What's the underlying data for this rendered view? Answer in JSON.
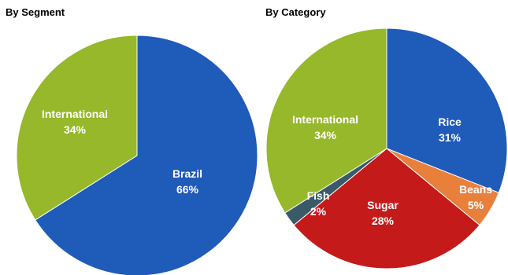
{
  "chart_data": [
    {
      "type": "pie",
      "title": "By Segment",
      "slices": [
        {
          "label": "Brazil",
          "value": 66,
          "value_label": "66%",
          "color": "#1F5BB8"
        },
        {
          "label": "International",
          "value": 34,
          "value_label": "34%",
          "color": "#96B82A"
        }
      ]
    },
    {
      "type": "pie",
      "title": "By Category",
      "slices": [
        {
          "label": "Rice",
          "value": 31,
          "value_label": "31%",
          "color": "#1F5BB8"
        },
        {
          "label": "Beans",
          "value": 5,
          "value_label": "5%",
          "color": "#E8803C"
        },
        {
          "label": "Sugar",
          "value": 28,
          "value_label": "28%",
          "color": "#C41A1A"
        },
        {
          "label": "Fish",
          "value": 2,
          "value_label": "2%",
          "color": "#3A5A6A"
        },
        {
          "label": "International",
          "value": 34,
          "value_label": "34%",
          "color": "#96B82A"
        }
      ]
    }
  ]
}
